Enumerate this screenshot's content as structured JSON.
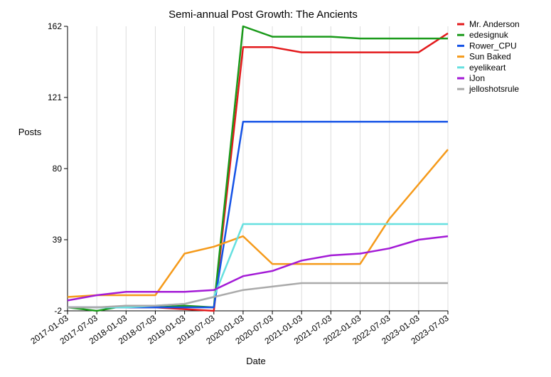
{
  "chart_data": {
    "type": "line",
    "title": "Semi-annual Post Growth: The Ancients",
    "xlabel": "Date",
    "ylabel": "Posts",
    "x": [
      "2017-01-03",
      "2017-07-03",
      "2018-01-03",
      "2018-07-03",
      "2019-01-03",
      "2019-07-03",
      "2020-01-03",
      "2020-07-03",
      "2021-01-03",
      "2021-07-03",
      "2022-01-03",
      "2022-07-03",
      "2023-01-03",
      "2023-07-03"
    ],
    "ylim": [
      -2,
      162
    ],
    "yticks": [
      -2,
      39,
      80,
      121,
      162
    ],
    "grid": "vertical",
    "legend": "top-right",
    "series": [
      {
        "name": "Mr. Anderson",
        "color": "#e31a1c",
        "values": [
          0,
          0,
          0,
          0,
          -1,
          -2,
          150,
          150,
          147,
          147,
          147,
          147,
          147,
          158
        ]
      },
      {
        "name": "edesignuk",
        "color": "#1a9a1a",
        "values": [
          0,
          -2,
          1,
          1,
          1,
          0,
          162,
          156,
          156,
          156,
          155,
          155,
          155,
          155
        ]
      },
      {
        "name": "Rower_CPU",
        "color": "#1452e6",
        "values": [
          0,
          0,
          0,
          0,
          0,
          0,
          107,
          107,
          107,
          107,
          107,
          107,
          107,
          107
        ]
      },
      {
        "name": "Sun Baked",
        "color": "#f59a1a",
        "values": [
          6,
          7,
          7,
          7,
          31,
          35,
          41,
          25,
          25,
          25,
          25,
          51,
          71,
          91
        ]
      },
      {
        "name": "eyelikeart",
        "color": "#66e0e0",
        "values": [
          0,
          0,
          0,
          1,
          2,
          6,
          48,
          48,
          48,
          48,
          48,
          48,
          48,
          48
        ]
      },
      {
        "name": "iJon",
        "color": "#a31ad6",
        "values": [
          4,
          7,
          9,
          9,
          9,
          10,
          18,
          21,
          27,
          30,
          31,
          34,
          39,
          41
        ]
      },
      {
        "name": "jelloshotsrule",
        "color": "#aaaaaa",
        "values": [
          0,
          0,
          1,
          1,
          2,
          6,
          10,
          12,
          14,
          14,
          14,
          14,
          14,
          14
        ]
      }
    ]
  }
}
